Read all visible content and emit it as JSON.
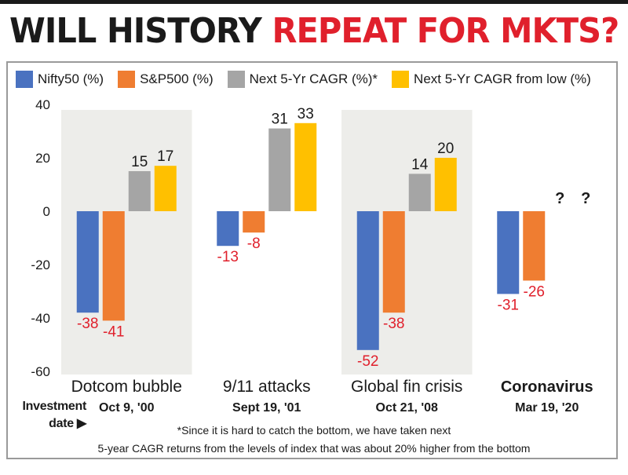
{
  "header": {
    "title_part1": "WILL HISTORY",
    "title_part2": "REPEAT FOR MKTS?"
  },
  "chart_data": {
    "type": "bar",
    "categories": [
      "Dotcom bubble",
      "9/11 attacks",
      "Global fin crisis",
      "Coronavirus"
    ],
    "investment_dates": [
      "Oct 9, '00",
      "Sept 19, '01",
      "Oct 21, '08",
      "Mar 19, '20"
    ],
    "series": [
      {
        "name": "Nifty50 (%)",
        "color": "#4a72c0",
        "values": [
          -38,
          -13,
          -52,
          -31
        ]
      },
      {
        "name": "S&P500 (%)",
        "color": "#ef7d31",
        "values": [
          -41,
          -8,
          -38,
          -26
        ]
      },
      {
        "name": "Next 5-Yr CAGR (%)*",
        "color": "#a5a5a5",
        "values": [
          15,
          31,
          14,
          null
        ]
      },
      {
        "name": "Next 5-Yr CAGR from low (%)",
        "color": "#ffc000",
        "values": [
          17,
          33,
          20,
          null
        ]
      }
    ],
    "data_labels": [
      [
        "-38",
        "-13",
        "-52",
        "-31"
      ],
      [
        "-41",
        "-8",
        "-38",
        "-26"
      ],
      [
        "15",
        "31",
        "14",
        "?"
      ],
      [
        "17",
        "33",
        "20",
        "?"
      ]
    ],
    "y_ticks": [
      "40",
      "20",
      "0",
      "-20",
      "-40",
      "-60"
    ],
    "ylim": [
      -60,
      40
    ],
    "shaded_categories": [
      0,
      2
    ],
    "emphasized_category": 3,
    "legend_position": "top",
    "grid": false,
    "negative_label_color": "#e0202c"
  },
  "axis_note": {
    "line1": "Investment",
    "line2": "date ▶"
  },
  "footnote": {
    "line1": "*Since it is hard to catch the bottom, we have taken next",
    "line2": "5-year CAGR returns from the levels of index that was about 20% higher from the bottom"
  }
}
